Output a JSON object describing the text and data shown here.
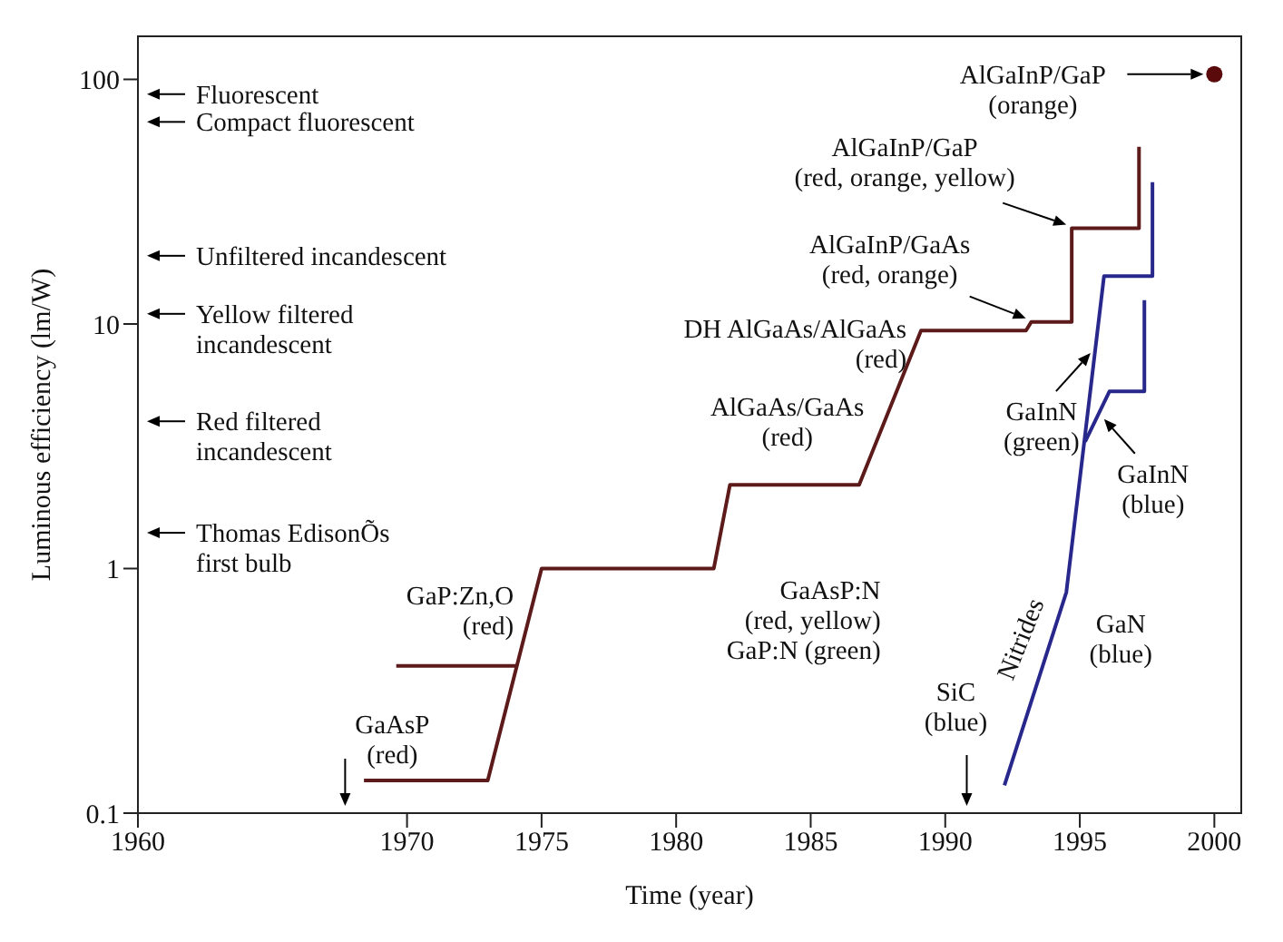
{
  "chart_data": {
    "type": "line",
    "xlabel": "Time (year)",
    "ylabel": "Luminous efficiency (lm/W)",
    "log": "y",
    "xlim": [
      1960,
      2001
    ],
    "xticks": [
      1960,
      1970,
      1975,
      1980,
      1985,
      1990,
      1995,
      2000
    ],
    "ylim": [
      0.1,
      150
    ],
    "yticks": [
      0.1,
      1,
      10,
      100
    ],
    "marker": "none",
    "series": [
      {
        "color": "#5c1a1a",
        "x": [
          1968.4,
          1973.0,
          1975.0,
          1981.4,
          1982.0,
          1986.8,
          1989.1,
          1993.0,
          1993.2,
          1994.7,
          1994.7,
          1997.2,
          1997.2
        ],
        "values": [
          0.136,
          0.136,
          1.0,
          1.0,
          2.2,
          2.2,
          9.4,
          9.4,
          10.2,
          10.2,
          24.6,
          24.6,
          53
        ]
      },
      {
        "color": "#5c1a1a",
        "x": [
          1969.6,
          1974.1
        ],
        "values": [
          0.4,
          0.4
        ]
      },
      {
        "color": "#28288c",
        "x": [
          1992.2,
          1994.5,
          1995.9,
          1997.7,
          1997.7
        ],
        "values": [
          0.13,
          0.8,
          15.7,
          15.7,
          38
        ]
      },
      {
        "color": "#28288c",
        "x": [
          1995.2,
          1996.1,
          1997.4,
          1997.4
        ],
        "values": [
          3.3,
          5.3,
          5.3,
          12.5
        ]
      },
      {
        "type": "scatter",
        "marker": "circle",
        "color": "#5a0a0a",
        "x": [
          2000
        ],
        "values": [
          105
        ]
      }
    ],
    "annotations": [
      "Fluorescent",
      "Compact fluorescent",
      "Unfiltered incandescent",
      "Yellow filtered\nincandescent",
      "Red filtered\nincandescent",
      "Thomas EdisonÕs\nfirst bulb",
      "GaAsP\n(red)",
      {
        "text": "GaP:Zn,O\n(red)",
        "x": 1974.1,
        "y": 0.4
      },
      {
        "text": "AlGaAs/GaAs\n(red)",
        "x": 1984.4,
        "y": 2.2
      },
      "GaAsP:N\n(red, yellow)\nGaP:N (green)",
      {
        "text": "DH AlGaAs/AlGaAs\n(red)",
        "x": 1989.1,
        "y": 9.4
      },
      {
        "text": "AlGaInP/GaAs\n(red, orange)",
        "x": 1993.2,
        "y": 10.2
      },
      {
        "text": "AlGaInP/GaP\n(red, orange, yellow)",
        "x": 1994.7,
        "y": 24.6
      },
      "AlGaInP/GaP\n(orange)",
      {
        "text": "GaInN\n(green)",
        "x": 1995.6,
        "y": 8
      },
      {
        "text": "GaInN\n(blue)",
        "x": 1995.7,
        "y": 4.3
      },
      {
        "text": "GaN\n(blue)",
        "x": 1994.5,
        "y": 0.8
      },
      {
        "text": "Nitrides",
        "x": 1993.9,
        "y": 0.5
      },
      "SiC\n(blue)"
    ]
  }
}
